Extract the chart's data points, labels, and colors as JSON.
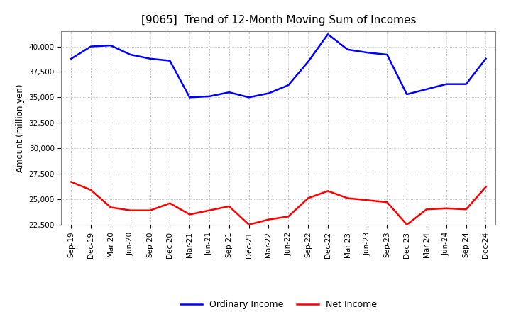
{
  "title": "[9065]  Trend of 12-Month Moving Sum of Incomes",
  "ylabel": "Amount (million yen)",
  "ylim": [
    22500,
    41500
  ],
  "yticks": [
    22500,
    25000,
    27500,
    30000,
    32500,
    35000,
    37500,
    40000
  ],
  "x_labels": [
    "Sep-19",
    "Dec-19",
    "Mar-20",
    "Jun-20",
    "Sep-20",
    "Dec-20",
    "Mar-21",
    "Jun-21",
    "Sep-21",
    "Dec-21",
    "Mar-22",
    "Jun-22",
    "Sep-22",
    "Dec-22",
    "Mar-23",
    "Jun-23",
    "Sep-23",
    "Dec-23",
    "Mar-24",
    "Jun-24",
    "Sep-24",
    "Dec-24"
  ],
  "ordinary_income": [
    38800,
    40000,
    40100,
    39200,
    38800,
    38600,
    35000,
    35100,
    35500,
    35000,
    35400,
    36200,
    38500,
    41200,
    39700,
    39400,
    39200,
    35300,
    35800,
    36300,
    36300,
    38800
  ],
  "net_income": [
    26700,
    25900,
    24200,
    23900,
    23900,
    24600,
    23500,
    23900,
    24300,
    22500,
    23000,
    23300,
    25100,
    25800,
    25100,
    24900,
    24700,
    22500,
    24000,
    24100,
    24000,
    26200
  ],
  "ordinary_color": "#0000ff",
  "net_color": "#ff0000",
  "background_color": "#ffffff",
  "grid_color": "#b0b0b0",
  "title_fontsize": 11,
  "tick_fontsize": 7.5,
  "ylabel_fontsize": 8.5,
  "legend_fontsize": 9,
  "legend_labels": [
    "Ordinary Income",
    "Net Income"
  ]
}
